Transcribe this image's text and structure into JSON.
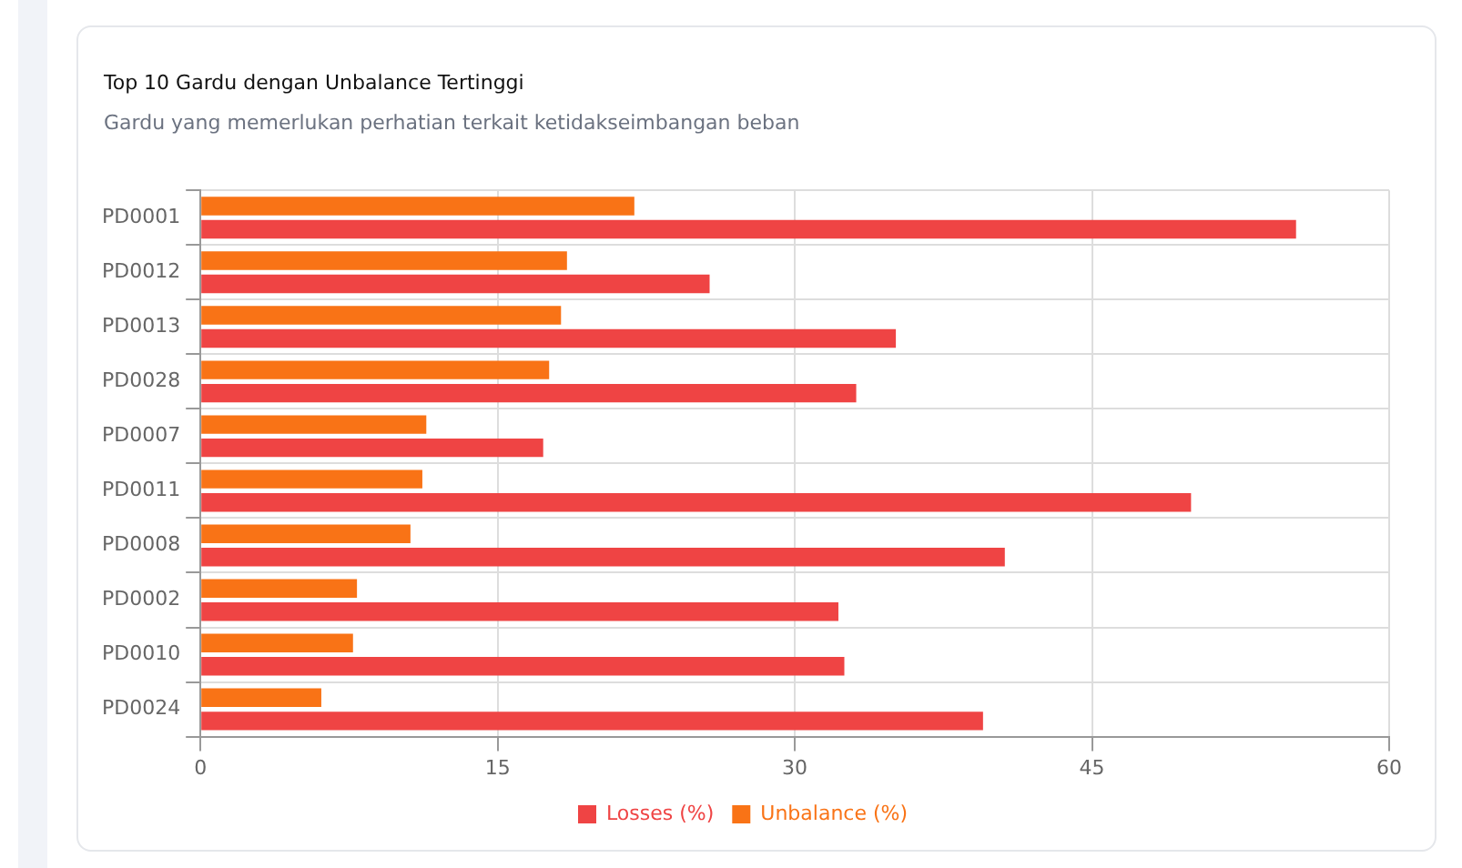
{
  "chart_data": {
    "type": "bar",
    "orientation": "horizontal",
    "title": "Top 10 Gardu dengan Unbalance Tertinggi",
    "subtitle": "Gardu yang memerlukan perhatian terkait ketidakseimbangan beban",
    "categories": [
      "PD0001",
      "PD0012",
      "PD0013",
      "PD0028",
      "PD0007",
      "PD0011",
      "PD0008",
      "PD0002",
      "PD0010",
      "PD0024"
    ],
    "series": [
      {
        "name": "Unbalance (%)",
        "color": "#f97316",
        "values": [
          21.9,
          18.5,
          18.2,
          17.6,
          11.4,
          11.2,
          10.6,
          7.9,
          7.7,
          6.1
        ]
      },
      {
        "name": "Losses (%)",
        "color": "#ef4444",
        "values": [
          55.3,
          25.7,
          35.1,
          33.1,
          17.3,
          50.0,
          40.6,
          32.2,
          32.5,
          39.5
        ]
      }
    ],
    "xlim": [
      0,
      60
    ],
    "xticks": [
      0,
      15,
      30,
      45,
      60
    ],
    "grid": true,
    "legend": "bottom"
  }
}
